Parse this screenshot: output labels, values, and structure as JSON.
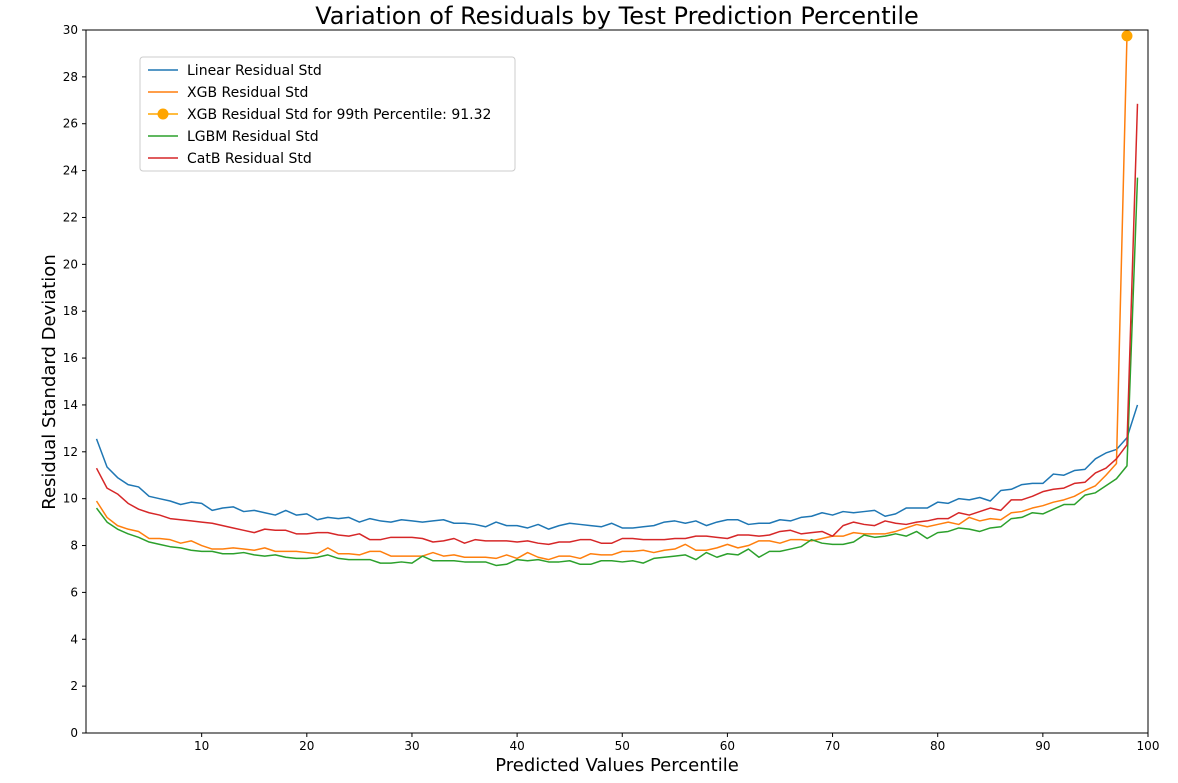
{
  "chart_data": {
    "type": "line",
    "title": "Variation of Residuals by Test Prediction Percentile",
    "xlabel": "Predicted Values Percentile",
    "ylabel": "Residual Standard Deviation",
    "xlim": [
      -1,
      100
    ],
    "ylim": [
      0,
      30
    ],
    "xticks": [
      10,
      20,
      30,
      40,
      50,
      60,
      70,
      80,
      90,
      100
    ],
    "yticks": [
      0,
      2,
      4,
      6,
      8,
      10,
      12,
      14,
      16,
      18,
      20,
      22,
      24,
      26,
      28,
      30
    ],
    "grid": false,
    "legend_position": "upper-left",
    "series": [
      {
        "name": "Linear Residual Std",
        "color": "#1f77b4",
        "x": [
          0,
          1,
          2,
          3,
          4,
          5,
          6,
          7,
          8,
          9,
          10,
          11,
          12,
          13,
          14,
          15,
          16,
          17,
          18,
          19,
          20,
          21,
          22,
          23,
          24,
          25,
          26,
          27,
          28,
          29,
          30,
          31,
          32,
          33,
          34,
          35,
          36,
          37,
          38,
          39,
          40,
          41,
          42,
          43,
          44,
          45,
          46,
          47,
          48,
          49,
          50,
          51,
          52,
          53,
          54,
          55,
          56,
          57,
          58,
          59,
          60,
          61,
          62,
          63,
          64,
          65,
          66,
          67,
          68,
          69,
          70,
          71,
          72,
          73,
          74,
          75,
          76,
          77,
          78,
          79,
          80,
          81,
          82,
          83,
          84,
          85,
          86,
          87,
          88,
          89,
          90,
          91,
          92,
          93,
          94,
          95,
          96,
          97,
          98,
          99
        ],
        "values": [
          12.55,
          11.35,
          10.9,
          10.6,
          10.5,
          10.1,
          10.0,
          9.9,
          9.75,
          9.85,
          9.8,
          9.5,
          9.6,
          9.65,
          9.45,
          9.5,
          9.4,
          9.3,
          9.5,
          9.3,
          9.35,
          9.1,
          9.2,
          9.15,
          9.2,
          9.0,
          9.15,
          9.05,
          9.0,
          9.1,
          9.05,
          9.0,
          9.05,
          9.1,
          8.95,
          8.95,
          8.9,
          8.8,
          9.0,
          8.85,
          8.85,
          8.75,
          8.9,
          8.7,
          8.85,
          8.95,
          8.9,
          8.85,
          8.8,
          8.95,
          8.75,
          8.75,
          8.8,
          8.85,
          9.0,
          9.05,
          8.95,
          9.05,
          8.85,
          9.0,
          9.1,
          9.1,
          8.9,
          8.95,
          8.95,
          9.1,
          9.05,
          9.2,
          9.25,
          9.4,
          9.3,
          9.45,
          9.4,
          9.45,
          9.5,
          9.25,
          9.35,
          9.6,
          9.6,
          9.6,
          9.85,
          9.8,
          10.0,
          9.95,
          10.05,
          9.9,
          10.35,
          10.4,
          10.6,
          10.65,
          10.65,
          11.05,
          11.0,
          11.2,
          11.25,
          11.7,
          11.95,
          12.1,
          12.6,
          14.0
        ]
      },
      {
        "name": "XGB Residual Std",
        "color": "#ff7f0e",
        "x": [
          0,
          1,
          2,
          3,
          4,
          5,
          6,
          7,
          8,
          9,
          10,
          11,
          12,
          13,
          14,
          15,
          16,
          17,
          18,
          19,
          20,
          21,
          22,
          23,
          24,
          25,
          26,
          27,
          28,
          29,
          30,
          31,
          32,
          33,
          34,
          35,
          36,
          37,
          38,
          39,
          40,
          41,
          42,
          43,
          44,
          45,
          46,
          47,
          48,
          49,
          50,
          51,
          52,
          53,
          54,
          55,
          56,
          57,
          58,
          59,
          60,
          61,
          62,
          63,
          64,
          65,
          66,
          67,
          68,
          69,
          70,
          71,
          72,
          73,
          74,
          75,
          76,
          77,
          78,
          79,
          80,
          81,
          82,
          83,
          84,
          85,
          86,
          87,
          88,
          89,
          90,
          91,
          92,
          93,
          94,
          95,
          96,
          97,
          98
        ],
        "values": [
          9.9,
          9.2,
          8.85,
          8.7,
          8.6,
          8.3,
          8.3,
          8.25,
          8.1,
          8.2,
          8.0,
          7.85,
          7.85,
          7.9,
          7.85,
          7.8,
          7.9,
          7.75,
          7.75,
          7.75,
          7.7,
          7.65,
          7.9,
          7.65,
          7.65,
          7.6,
          7.75,
          7.75,
          7.55,
          7.55,
          7.55,
          7.55,
          7.7,
          7.55,
          7.6,
          7.5,
          7.5,
          7.5,
          7.45,
          7.6,
          7.45,
          7.7,
          7.5,
          7.4,
          7.55,
          7.55,
          7.45,
          7.65,
          7.6,
          7.6,
          7.75,
          7.75,
          7.8,
          7.7,
          7.8,
          7.85,
          8.05,
          7.8,
          7.8,
          7.9,
          8.05,
          7.9,
          8.0,
          8.2,
          8.2,
          8.1,
          8.25,
          8.25,
          8.2,
          8.3,
          8.4,
          8.4,
          8.55,
          8.5,
          8.5,
          8.5,
          8.6,
          8.75,
          8.9,
          8.8,
          8.9,
          9.0,
          8.9,
          9.2,
          9.05,
          9.15,
          9.1,
          9.4,
          9.45,
          9.6,
          9.7,
          9.85,
          9.95,
          10.1,
          10.35,
          10.55,
          11.0,
          11.5,
          29.75
        ]
      },
      {
        "name": "LGBM Residual Std",
        "color": "#2ca02c",
        "x": [
          0,
          1,
          2,
          3,
          4,
          5,
          6,
          7,
          8,
          9,
          10,
          11,
          12,
          13,
          14,
          15,
          16,
          17,
          18,
          19,
          20,
          21,
          22,
          23,
          24,
          25,
          26,
          27,
          28,
          29,
          30,
          31,
          32,
          33,
          34,
          35,
          36,
          37,
          38,
          39,
          40,
          41,
          42,
          43,
          44,
          45,
          46,
          47,
          48,
          49,
          50,
          51,
          52,
          53,
          54,
          55,
          56,
          57,
          58,
          59,
          60,
          61,
          62,
          63,
          64,
          65,
          66,
          67,
          68,
          69,
          70,
          71,
          72,
          73,
          74,
          75,
          76,
          77,
          78,
          79,
          80,
          81,
          82,
          83,
          84,
          85,
          86,
          87,
          88,
          89,
          90,
          91,
          92,
          93,
          94,
          95,
          96,
          97,
          98,
          99
        ],
        "values": [
          9.6,
          9.0,
          8.7,
          8.5,
          8.35,
          8.15,
          8.05,
          7.95,
          7.9,
          7.8,
          7.75,
          7.75,
          7.65,
          7.65,
          7.7,
          7.6,
          7.55,
          7.6,
          7.5,
          7.45,
          7.45,
          7.5,
          7.6,
          7.45,
          7.4,
          7.4,
          7.4,
          7.25,
          7.25,
          7.3,
          7.25,
          7.55,
          7.35,
          7.35,
          7.35,
          7.3,
          7.3,
          7.3,
          7.15,
          7.2,
          7.4,
          7.35,
          7.4,
          7.3,
          7.3,
          7.35,
          7.2,
          7.2,
          7.35,
          7.35,
          7.3,
          7.35,
          7.25,
          7.45,
          7.5,
          7.55,
          7.6,
          7.4,
          7.7,
          7.5,
          7.65,
          7.6,
          7.85,
          7.5,
          7.75,
          7.75,
          7.85,
          7.95,
          8.25,
          8.1,
          8.05,
          8.05,
          8.15,
          8.45,
          8.35,
          8.4,
          8.5,
          8.4,
          8.6,
          8.3,
          8.55,
          8.6,
          8.75,
          8.7,
          8.6,
          8.75,
          8.8,
          9.15,
          9.2,
          9.4,
          9.35,
          9.55,
          9.75,
          9.75,
          10.15,
          10.25,
          10.55,
          10.85,
          11.4,
          23.7
        ]
      },
      {
        "name": "CatB Residual Std",
        "color": "#d62728",
        "x": [
          0,
          1,
          2,
          3,
          4,
          5,
          6,
          7,
          8,
          9,
          10,
          11,
          12,
          13,
          14,
          15,
          16,
          17,
          18,
          19,
          20,
          21,
          22,
          23,
          24,
          25,
          26,
          27,
          28,
          29,
          30,
          31,
          32,
          33,
          34,
          35,
          36,
          37,
          38,
          39,
          40,
          41,
          42,
          43,
          44,
          45,
          46,
          47,
          48,
          49,
          50,
          51,
          52,
          53,
          54,
          55,
          56,
          57,
          58,
          59,
          60,
          61,
          62,
          63,
          64,
          65,
          66,
          67,
          68,
          69,
          70,
          71,
          72,
          73,
          74,
          75,
          76,
          77,
          78,
          79,
          80,
          81,
          82,
          83,
          84,
          85,
          86,
          87,
          88,
          89,
          90,
          91,
          92,
          93,
          94,
          95,
          96,
          97,
          98,
          99
        ],
        "values": [
          11.3,
          10.45,
          10.2,
          9.8,
          9.55,
          9.4,
          9.3,
          9.15,
          9.1,
          9.05,
          9.0,
          8.95,
          8.85,
          8.75,
          8.65,
          8.55,
          8.7,
          8.65,
          8.65,
          8.5,
          8.5,
          8.55,
          8.55,
          8.45,
          8.4,
          8.5,
          8.25,
          8.25,
          8.35,
          8.35,
          8.35,
          8.3,
          8.15,
          8.2,
          8.3,
          8.1,
          8.25,
          8.2,
          8.2,
          8.2,
          8.15,
          8.2,
          8.1,
          8.05,
          8.15,
          8.15,
          8.25,
          8.25,
          8.1,
          8.1,
          8.3,
          8.3,
          8.25,
          8.25,
          8.25,
          8.3,
          8.3,
          8.4,
          8.4,
          8.35,
          8.3,
          8.45,
          8.45,
          8.4,
          8.45,
          8.6,
          8.65,
          8.5,
          8.55,
          8.6,
          8.4,
          8.85,
          9.0,
          8.9,
          8.85,
          9.05,
          8.95,
          8.9,
          9.0,
          9.05,
          9.15,
          9.15,
          9.4,
          9.3,
          9.45,
          9.6,
          9.5,
          9.95,
          9.95,
          10.1,
          10.3,
          10.4,
          10.45,
          10.65,
          10.7,
          11.1,
          11.3,
          11.7,
          12.3,
          26.85
        ]
      }
    ],
    "highlight_point": {
      "series_name": "XGB Residual Std for 99th Percentile: 91.32",
      "color": "#ffa500",
      "x": 98,
      "y": 29.75
    },
    "legend_entries": [
      {
        "label": "Linear Residual Std",
        "color": "#1f77b4",
        "marker": false
      },
      {
        "label": "XGB Residual Std",
        "color": "#ff7f0e",
        "marker": false
      },
      {
        "label": "XGB Residual Std for 99th Percentile: 91.32",
        "color": "#ffa500",
        "marker": true
      },
      {
        "label": "LGBM Residual Std",
        "color": "#2ca02c",
        "marker": false
      },
      {
        "label": "CatB Residual Std",
        "color": "#d62728",
        "marker": false
      }
    ]
  }
}
